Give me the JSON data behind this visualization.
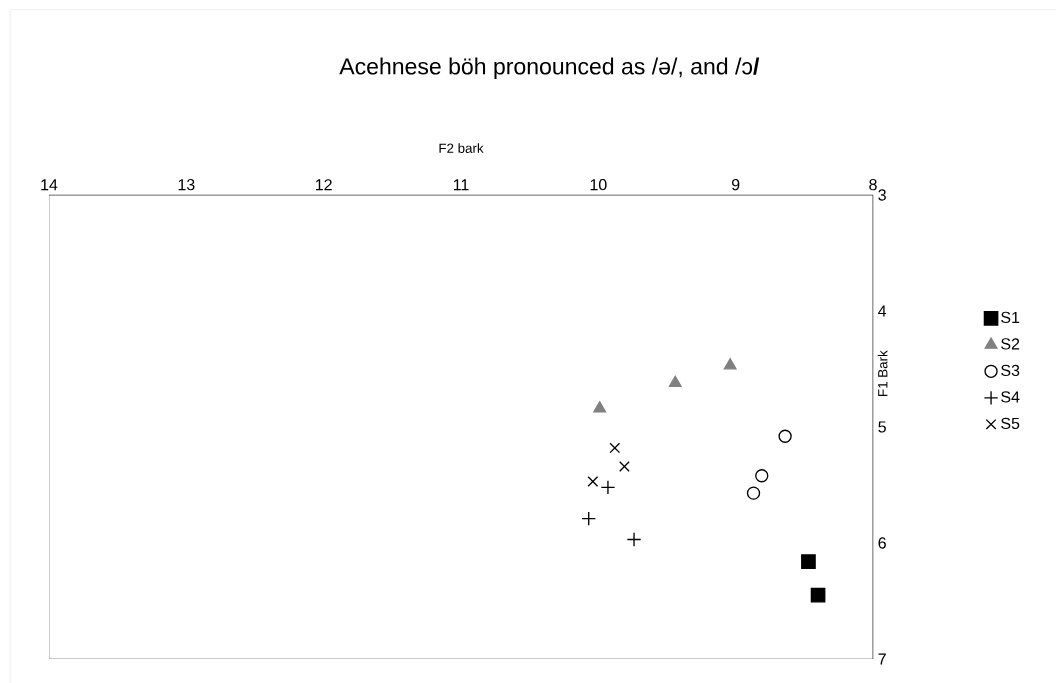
{
  "chart_data": {
    "type": "scatter",
    "title": "Acehnese böh pronounced as /ə/, and /ɔ**/**",
    "xlabel": "F2 bark",
    "ylabel": "F1 Bark",
    "xlim": [
      14,
      8
    ],
    "xticks": [
      14,
      13,
      12,
      11,
      10,
      9,
      8
    ],
    "ylim": [
      7,
      3
    ],
    "yticks": [
      3,
      4,
      5,
      6,
      7
    ],
    "grid": false,
    "legend": "right",
    "series": [
      {
        "name": "S1",
        "color": "#000000",
        "marker": "square",
        "x": [
          8.47,
          8.4
        ],
        "values": [
          6.16,
          6.45
        ]
      },
      {
        "name": "S2",
        "color": "#808080",
        "marker": "triangle",
        "x": [
          9.99,
          9.44,
          9.04
        ],
        "values": [
          4.84,
          4.62,
          4.47
        ]
      },
      {
        "name": "S3",
        "color": "#000000",
        "marker": "circle",
        "x": [
          8.64,
          8.81,
          8.87
        ],
        "values": [
          5.08,
          5.42,
          5.57
        ]
      },
      {
        "name": "S4",
        "color": "#000000",
        "marker": "plus",
        "x": [
          9.93,
          10.07,
          9.74
        ],
        "values": [
          5.52,
          5.79,
          5.97
        ]
      },
      {
        "name": "S5",
        "color": "#000000",
        "marker": "cross",
        "x": [
          9.88,
          9.81,
          10.04
        ],
        "values": [
          5.18,
          5.34,
          5.47
        ]
      }
    ]
  }
}
